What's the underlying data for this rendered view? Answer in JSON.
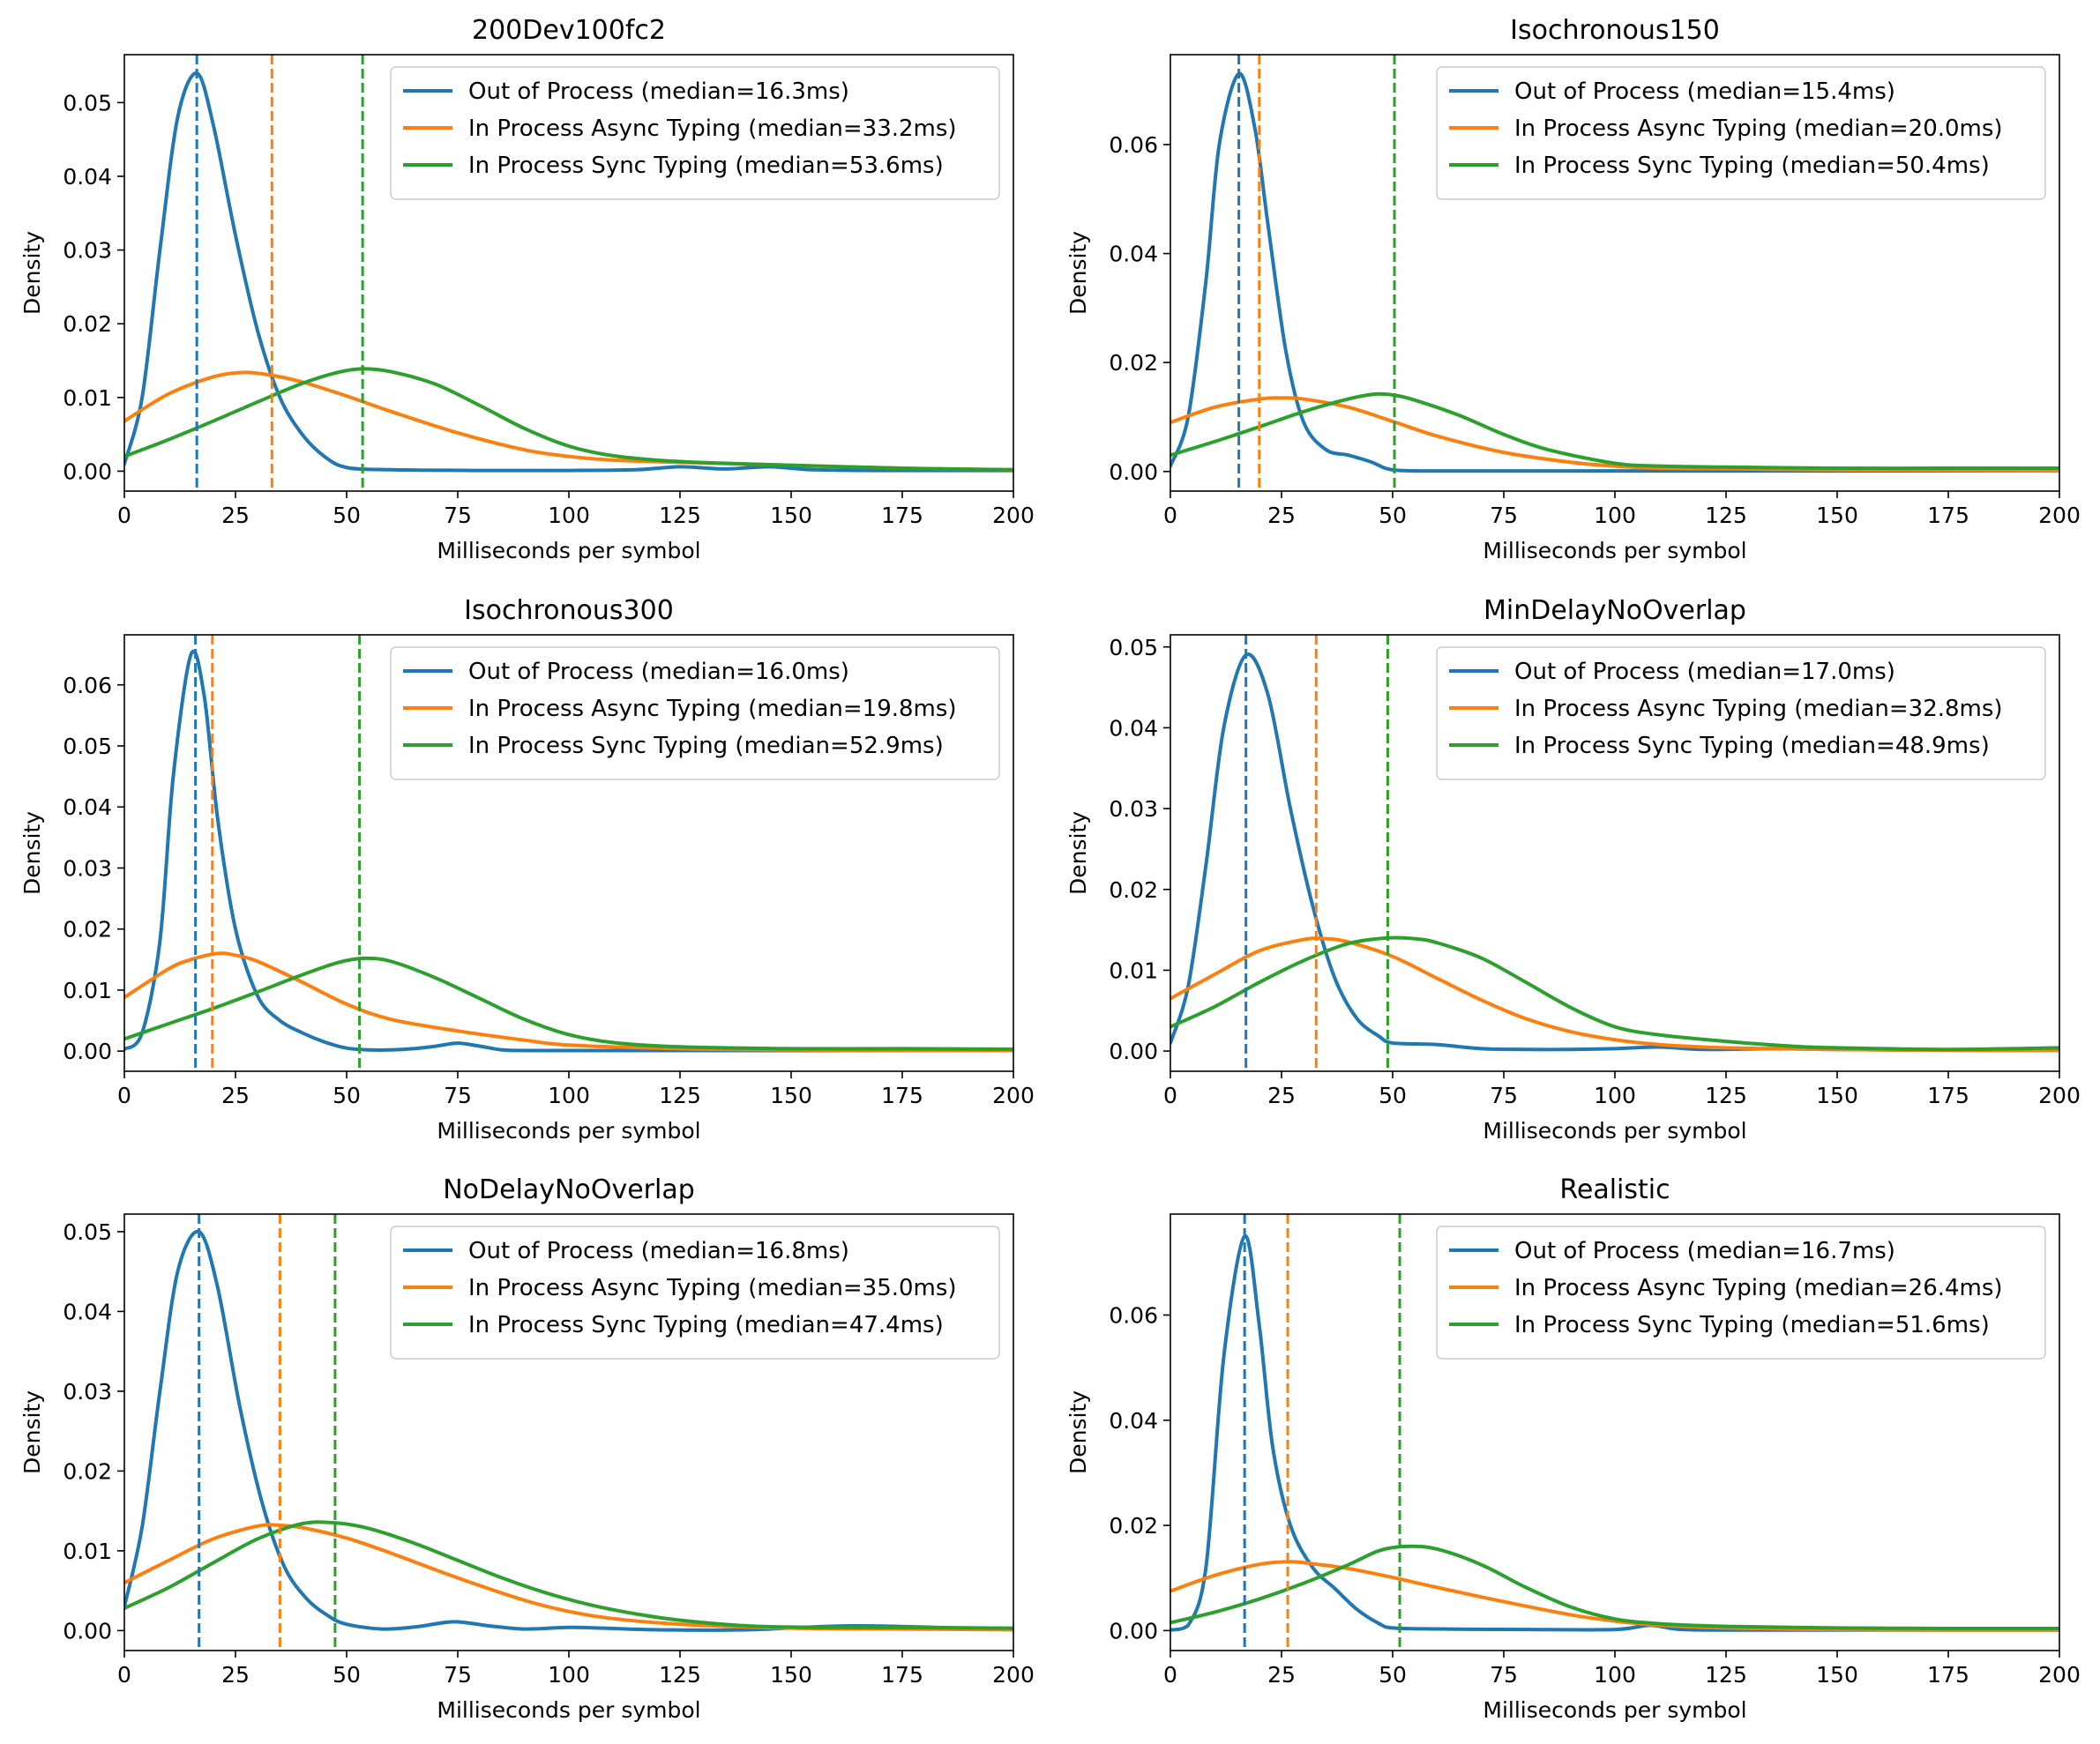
{
  "colors": {
    "out_of_process": "#1f77b4",
    "in_process_async": "#ff7f0e",
    "in_process_sync": "#2ca02c"
  },
  "chart_data": [
    {
      "type": "line",
      "title": "200Dev100fc2",
      "xlabel": "Milliseconds per symbol",
      "ylabel": "Density",
      "xlim": [
        0,
        200
      ],
      "ylim": [
        -0.0027,
        0.0565
      ],
      "xticks": [
        "0",
        "25",
        "50",
        "75",
        "100",
        "125",
        "150",
        "175",
        "200"
      ],
      "yticks": [
        "0.00",
        "0.01",
        "0.02",
        "0.03",
        "0.04",
        "0.05"
      ],
      "legend_position": "top-right",
      "series": [
        {
          "name": "Out of Process (median=16.3ms)",
          "color": "#1f77b4",
          "median": 16.3,
          "x": [
            0,
            4,
            8,
            12,
            16.3,
            20,
            25,
            30,
            35,
            40,
            45,
            50,
            60,
            80,
            100,
            115,
            125,
            135,
            145,
            155,
            170,
            200
          ],
          "y": [
            0.001,
            0.01,
            0.03,
            0.048,
            0.054,
            0.047,
            0.032,
            0.019,
            0.01,
            0.005,
            0.002,
            0.0005,
            0.0002,
            0.0001,
            0.0001,
            0.0002,
            0.0006,
            0.0003,
            0.0006,
            0.0002,
            0.0001,
            0.0001
          ]
        },
        {
          "name": "In Process Async Typing (median=33.2ms)",
          "color": "#ff7f0e",
          "median": 33.2,
          "x": [
            0,
            10,
            20,
            27,
            33.2,
            40,
            50,
            60,
            75,
            90,
            100,
            110,
            125,
            150,
            175,
            200
          ],
          "y": [
            0.0068,
            0.0105,
            0.0128,
            0.0134,
            0.013,
            0.0121,
            0.0102,
            0.0081,
            0.0052,
            0.0029,
            0.002,
            0.0015,
            0.0012,
            0.0008,
            0.0004,
            0.0002
          ],
          "vline_label": ""
        },
        {
          "name": "In Process Sync Typing (median=53.6ms)",
          "color": "#2ca02c",
          "median": 53.6,
          "x": [
            0,
            10,
            20,
            30,
            40,
            48,
            53.6,
            60,
            70,
            80,
            90,
            100,
            110,
            125,
            150,
            175,
            200
          ],
          "y": [
            0.002,
            0.0043,
            0.0068,
            0.0094,
            0.0119,
            0.0134,
            0.0139,
            0.0135,
            0.0118,
            0.0089,
            0.0058,
            0.0034,
            0.0021,
            0.0013,
            0.0008,
            0.0004,
            0.0002
          ]
        }
      ]
    },
    {
      "type": "line",
      "title": "Isochronous150",
      "xlabel": "Milliseconds per symbol",
      "ylabel": "Density",
      "xlim": [
        0,
        200
      ],
      "ylim": [
        -0.0036,
        0.0765
      ],
      "xticks": [
        "0",
        "25",
        "50",
        "75",
        "100",
        "125",
        "150",
        "175",
        "200"
      ],
      "yticks": [
        "0.00",
        "0.02",
        "0.04",
        "0.06"
      ],
      "legend_position": "top-right",
      "series": [
        {
          "name": "Out of Process (median=15.4ms)",
          "color": "#1f77b4",
          "median": 15.4,
          "x": [
            0,
            4,
            8,
            11,
            15.4,
            19,
            22,
            26,
            30,
            35,
            40,
            45,
            50,
            60,
            80,
            120,
            160,
            200
          ],
          "y": [
            0.001,
            0.01,
            0.035,
            0.06,
            0.073,
            0.063,
            0.045,
            0.022,
            0.009,
            0.004,
            0.003,
            0.0018,
            0.0003,
            0.0001,
            0.0001,
            0.0001,
            0.0001,
            0.0001
          ]
        },
        {
          "name": "In Process Async Typing (median=20.0ms)",
          "color": "#ff7f0e",
          "median": 20.0,
          "x": [
            0,
            10,
            20,
            25,
            30,
            40,
            50,
            60,
            75,
            90,
            100,
            110,
            125,
            150,
            175,
            200
          ],
          "y": [
            0.009,
            0.0118,
            0.0133,
            0.0135,
            0.0133,
            0.0118,
            0.0092,
            0.0065,
            0.0035,
            0.0017,
            0.001,
            0.0006,
            0.0005,
            0.0003,
            0.0002,
            0.0001
          ]
        },
        {
          "name": "In Process Sync Typing (median=50.4ms)",
          "color": "#2ca02c",
          "median": 50.4,
          "x": [
            0,
            10,
            20,
            30,
            40,
            46,
            50.4,
            55,
            65,
            75,
            85,
            100,
            110,
            125,
            150,
            175,
            200
          ],
          "y": [
            0.003,
            0.0055,
            0.0082,
            0.011,
            0.0133,
            0.0142,
            0.014,
            0.0131,
            0.0103,
            0.0068,
            0.004,
            0.0015,
            0.001,
            0.0008,
            0.0006,
            0.0006,
            0.0006
          ]
        }
      ]
    },
    {
      "type": "line",
      "title": "Isochronous300",
      "xlabel": "Milliseconds per symbol",
      "ylabel": "Density",
      "xlim": [
        0,
        200
      ],
      "ylim": [
        -0.0033,
        0.0682
      ],
      "xticks": [
        "0",
        "25",
        "50",
        "75",
        "100",
        "125",
        "150",
        "175",
        "200"
      ],
      "yticks": [
        "0.00",
        "0.01",
        "0.02",
        "0.03",
        "0.04",
        "0.05",
        "0.06"
      ],
      "legend_position": "top-right",
      "series": [
        {
          "name": "Out of Process (median=16.0ms)",
          "color": "#1f77b4",
          "median": 16.0,
          "x": [
            0,
            4,
            8,
            11,
            15,
            18,
            21,
            25,
            30,
            35,
            40,
            45,
            50,
            55,
            60,
            65,
            70,
            75,
            80,
            85,
            90,
            100,
            150,
            200
          ],
          "y": [
            0.0003,
            0.003,
            0.018,
            0.045,
            0.065,
            0.058,
            0.038,
            0.02,
            0.009,
            0.005,
            0.003,
            0.0015,
            0.0005,
            0.0002,
            0.0002,
            0.0004,
            0.0008,
            0.0013,
            0.0008,
            0.0002,
            0.0001,
            0.0001,
            0.0001,
            0.0001
          ]
        },
        {
          "name": "In Process Async Typing (median=19.8ms)",
          "color": "#ff7f0e",
          "median": 19.8,
          "x": [
            0,
            10,
            15,
            21,
            25,
            30,
            40,
            50,
            60,
            75,
            90,
            100,
            125,
            150,
            175,
            200
          ],
          "y": [
            0.0088,
            0.0135,
            0.015,
            0.016,
            0.0157,
            0.0147,
            0.0113,
            0.0077,
            0.0052,
            0.0033,
            0.0018,
            0.001,
            0.0004,
            0.0002,
            0.0001,
            0.0001
          ]
        },
        {
          "name": "In Process Sync Typing (median=52.9ms)",
          "color": "#2ca02c",
          "median": 52.9,
          "x": [
            0,
            10,
            20,
            30,
            40,
            48,
            54,
            60,
            70,
            80,
            90,
            100,
            110,
            125,
            150,
            175,
            200
          ],
          "y": [
            0.002,
            0.0045,
            0.007,
            0.0097,
            0.0125,
            0.0145,
            0.0152,
            0.0147,
            0.012,
            0.0086,
            0.0052,
            0.0027,
            0.0014,
            0.0007,
            0.0004,
            0.0004,
            0.0003
          ]
        }
      ]
    },
    {
      "type": "line",
      "title": "MinDelayNoOverlap",
      "xlabel": "Milliseconds per symbol",
      "ylabel": "Density",
      "xlim": [
        0,
        200
      ],
      "ylim": [
        -0.0025,
        0.0515
      ],
      "xticks": [
        "0",
        "25",
        "50",
        "75",
        "100",
        "125",
        "150",
        "175",
        "200"
      ],
      "yticks": [
        "0.00",
        "0.01",
        "0.02",
        "0.03",
        "0.04",
        "0.05"
      ],
      "legend_position": "top-right",
      "series": [
        {
          "name": "Out of Process (median=17.0ms)",
          "color": "#1f77b4",
          "median": 17.0,
          "x": [
            0,
            4,
            8,
            12,
            17,
            22,
            27,
            32,
            37,
            42,
            47,
            50,
            60,
            70,
            80,
            90,
            100,
            110,
            120,
            135,
            150,
            175,
            200
          ],
          "y": [
            0.001,
            0.008,
            0.023,
            0.04,
            0.049,
            0.044,
            0.03,
            0.018,
            0.009,
            0.004,
            0.0018,
            0.001,
            0.0008,
            0.0003,
            0.0002,
            0.0002,
            0.0003,
            0.0005,
            0.0002,
            0.0003,
            0.0002,
            0.0001,
            0.0001
          ]
        },
        {
          "name": "In Process Async Typing (median=32.8ms)",
          "color": "#ff7f0e",
          "median": 32.8,
          "x": [
            0,
            10,
            20,
            30,
            35,
            40,
            50,
            60,
            70,
            80,
            90,
            100,
            110,
            125,
            150,
            175,
            200
          ],
          "y": [
            0.0065,
            0.0095,
            0.0124,
            0.0138,
            0.0139,
            0.0135,
            0.0117,
            0.009,
            0.0063,
            0.004,
            0.0024,
            0.0014,
            0.0008,
            0.0004,
            0.0002,
            0.0001,
            0.0001
          ]
        },
        {
          "name": "In Process Sync Typing (median=48.9ms)",
          "color": "#2ca02c",
          "median": 48.9,
          "x": [
            0,
            10,
            20,
            30,
            40,
            48.9,
            55,
            60,
            70,
            80,
            90,
            100,
            110,
            125,
            140,
            150,
            175,
            200
          ],
          "y": [
            0.003,
            0.0055,
            0.0085,
            0.0112,
            0.0133,
            0.014,
            0.0139,
            0.0134,
            0.0115,
            0.0085,
            0.0054,
            0.003,
            0.002,
            0.0012,
            0.0006,
            0.0004,
            0.0002,
            0.0004
          ]
        }
      ]
    },
    {
      "type": "line",
      "title": "NoDelayNoOverlap",
      "xlabel": "Milliseconds per symbol",
      "ylabel": "Density",
      "xlim": [
        0,
        200
      ],
      "ylim": [
        -0.0025,
        0.0522
      ],
      "xticks": [
        "0",
        "25",
        "50",
        "75",
        "100",
        "125",
        "150",
        "175",
        "200"
      ],
      "yticks": [
        "0.00",
        "0.01",
        "0.02",
        "0.03",
        "0.04",
        "0.05"
      ],
      "legend_position": "top-right",
      "series": [
        {
          "name": "Out of Process (median=16.8ms)",
          "color": "#1f77b4",
          "median": 16.8,
          "x": [
            0,
            4,
            8,
            12,
            16.8,
            21,
            26,
            31,
            36,
            41,
            46,
            50,
            58,
            66,
            74,
            82,
            90,
            100,
            108,
            120,
            140,
            165,
            200
          ],
          "y": [
            0.003,
            0.013,
            0.03,
            0.045,
            0.05,
            0.043,
            0.028,
            0.016,
            0.008,
            0.004,
            0.0018,
            0.0008,
            0.0002,
            0.0005,
            0.0011,
            0.0006,
            0.0002,
            0.0004,
            0.0003,
            0.0001,
            0.0001,
            0.0006,
            0.0001
          ]
        },
        {
          "name": "In Process Async Typing (median=35.0ms)",
          "color": "#ff7f0e",
          "median": 35.0,
          "x": [
            0,
            10,
            20,
            30,
            35,
            40,
            50,
            60,
            75,
            90,
            100,
            110,
            125,
            150,
            175,
            200
          ],
          "y": [
            0.006,
            0.0088,
            0.0115,
            0.0131,
            0.0132,
            0.0129,
            0.0116,
            0.0097,
            0.0066,
            0.0038,
            0.0024,
            0.0015,
            0.0008,
            0.0003,
            0.0002,
            0.0001
          ]
        },
        {
          "name": "In Process Sync Typing (median=47.4ms)",
          "color": "#2ca02c",
          "median": 47.4,
          "x": [
            0,
            10,
            20,
            30,
            40,
            47.4,
            55,
            65,
            75,
            85,
            95,
            105,
            115,
            125,
            140,
            155,
            175,
            200
          ],
          "y": [
            0.0028,
            0.0054,
            0.0085,
            0.0115,
            0.0134,
            0.0135,
            0.0128,
            0.011,
            0.0088,
            0.0066,
            0.0047,
            0.0032,
            0.0021,
            0.0013,
            0.0006,
            0.0004,
            0.0004,
            0.0003
          ]
        }
      ]
    },
    {
      "type": "line",
      "title": "Realistic",
      "xlabel": "Milliseconds per symbol",
      "ylabel": "Density",
      "xlim": [
        0,
        200
      ],
      "ylim": [
        -0.0038,
        0.0792
      ],
      "xticks": [
        "0",
        "25",
        "50",
        "75",
        "100",
        "125",
        "150",
        "175",
        "200"
      ],
      "yticks": [
        "0.00",
        "0.02",
        "0.04",
        "0.06"
      ],
      "legend_position": "top-right",
      "series": [
        {
          "name": "Out of Process (median=16.7ms)",
          "color": "#1f77b4",
          "median": 16.7,
          "x": [
            0,
            4,
            8,
            12,
            16.7,
            20,
            23,
            27,
            32,
            37,
            42,
            47,
            50,
            60,
            80,
            100,
            108,
            115,
            130,
            160,
            200
          ],
          "y": [
            0.0001,
            0.001,
            0.012,
            0.052,
            0.075,
            0.058,
            0.035,
            0.02,
            0.012,
            0.008,
            0.004,
            0.0013,
            0.0005,
            0.0003,
            0.0002,
            0.0002,
            0.001,
            0.0002,
            0.0001,
            0.0001,
            0.0001
          ]
        },
        {
          "name": "In Process Async Typing (median=26.4ms)",
          "color": "#ff7f0e",
          "median": 26.4,
          "x": [
            0,
            10,
            20,
            27,
            33,
            40,
            50,
            60,
            75,
            90,
            100,
            110,
            125,
            150,
            175,
            200
          ],
          "y": [
            0.0075,
            0.0105,
            0.0126,
            0.0131,
            0.0126,
            0.0118,
            0.0101,
            0.0082,
            0.0055,
            0.003,
            0.0018,
            0.001,
            0.0005,
            0.0002,
            0.0001,
            0.0001
          ]
        },
        {
          "name": "In Process Sync Typing (median=51.6ms)",
          "color": "#2ca02c",
          "median": 51.6,
          "x": [
            0,
            10,
            20,
            30,
            40,
            47,
            53,
            60,
            70,
            80,
            90,
            100,
            110,
            125,
            150,
            175,
            200
          ],
          "y": [
            0.0015,
            0.0035,
            0.006,
            0.009,
            0.0125,
            0.0152,
            0.016,
            0.0155,
            0.0125,
            0.0082,
            0.0045,
            0.0022,
            0.0013,
            0.0008,
            0.0005,
            0.0004,
            0.0004
          ]
        }
      ]
    }
  ]
}
